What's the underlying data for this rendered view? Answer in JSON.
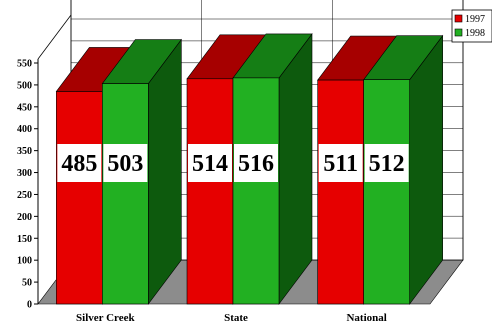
{
  "chart_data": {
    "type": "bar",
    "categories": [
      "Silver  Creek",
      "State",
      "National"
    ],
    "series": [
      {
        "name": "1997",
        "values": [
          485,
          514,
          511
        ],
        "color": "#e60000",
        "top_color": "#a60000",
        "side_color": "#7a0000"
      },
      {
        "name": "1998",
        "values": [
          503,
          516,
          512
        ],
        "color": "#22b022",
        "top_color": "#157e15",
        "side_color": "#0d5a0d"
      }
    ],
    "ylim": [
      0,
      550
    ],
    "yticks": [
      0,
      50,
      100,
      150,
      200,
      250,
      300,
      350,
      400,
      450,
      500,
      550
    ],
    "grid": true,
    "legend": "top-right",
    "three_d": true,
    "xlabel": "",
    "ylabel": "",
    "title": ""
  }
}
